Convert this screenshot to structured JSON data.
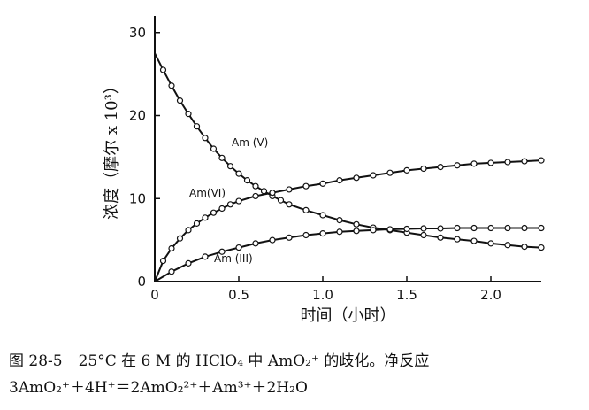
{
  "chart_data": {
    "type": "line",
    "xlabel": "时间（小时）",
    "ylabel": "浓度（摩尔 x 10³）",
    "xlim": [
      0,
      2.3
    ],
    "ylim": [
      0,
      32
    ],
    "x_ticks": [
      {
        "value": 0,
        "label": "0"
      },
      {
        "value": 0.5,
        "label": "0.5"
      },
      {
        "value": 1.0,
        "label": "1.0"
      },
      {
        "value": 1.5,
        "label": "1.5"
      },
      {
        "value": 2.0,
        "label": "2.0"
      }
    ],
    "y_ticks": [
      {
        "value": 0,
        "label": "0"
      },
      {
        "value": 10,
        "label": "10"
      },
      {
        "value": 20,
        "label": "20"
      },
      {
        "value": 30,
        "label": "30"
      }
    ],
    "grid": false,
    "legend": "none",
    "series": [
      {
        "name": "Am (V)",
        "x": [
          0.0,
          0.05,
          0.1,
          0.15,
          0.2,
          0.25,
          0.3,
          0.35,
          0.4,
          0.45,
          0.5,
          0.55,
          0.6,
          0.65,
          0.7,
          0.75,
          0.8,
          0.9,
          1.0,
          1.1,
          1.2,
          1.3,
          1.4,
          1.5,
          1.6,
          1.7,
          1.8,
          1.9,
          2.0,
          2.1,
          2.2,
          2.3
        ],
        "y": [
          27.5,
          25.5,
          23.6,
          21.8,
          20.2,
          18.7,
          17.3,
          16.0,
          14.9,
          13.9,
          13.0,
          12.2,
          11.5,
          10.9,
          10.3,
          9.8,
          9.3,
          8.6,
          8.0,
          7.4,
          6.9,
          6.5,
          6.2,
          5.9,
          5.6,
          5.3,
          5.1,
          4.9,
          4.6,
          4.4,
          4.2,
          4.1
        ]
      },
      {
        "name": "Am(VI)",
        "x": [
          0.0,
          0.05,
          0.1,
          0.15,
          0.2,
          0.25,
          0.3,
          0.35,
          0.4,
          0.45,
          0.5,
          0.6,
          0.7,
          0.8,
          0.9,
          1.0,
          1.1,
          1.2,
          1.3,
          1.4,
          1.5,
          1.6,
          1.7,
          1.8,
          1.9,
          2.0,
          2.1,
          2.2,
          2.3
        ],
        "y": [
          0.0,
          2.5,
          4.0,
          5.2,
          6.2,
          7.0,
          7.7,
          8.3,
          8.8,
          9.3,
          9.7,
          10.3,
          10.7,
          11.1,
          11.5,
          11.8,
          12.2,
          12.5,
          12.8,
          13.1,
          13.4,
          13.6,
          13.8,
          14.0,
          14.2,
          14.3,
          14.4,
          14.5,
          14.6
        ]
      },
      {
        "name": "Am (III)",
        "x": [
          0.0,
          0.1,
          0.2,
          0.3,
          0.4,
          0.5,
          0.6,
          0.7,
          0.8,
          0.9,
          1.0,
          1.1,
          1.2,
          1.3,
          1.4,
          1.5,
          1.6,
          1.7,
          1.8,
          1.9,
          2.0,
          2.1,
          2.2,
          2.3
        ],
        "y": [
          0.0,
          1.2,
          2.2,
          3.0,
          3.6,
          4.1,
          4.6,
          5.0,
          5.3,
          5.6,
          5.8,
          6.0,
          6.1,
          6.2,
          6.3,
          6.35,
          6.4,
          6.4,
          6.45,
          6.45,
          6.45,
          6.45,
          6.45,
          6.45
        ]
      }
    ]
  },
  "caption": {
    "fig_no": "图 28-5",
    "text": "25°C 在 6 M 的 HClO₄ 中 AmO₂⁺ 的歧化。净反应",
    "equation": "3AmO₂⁺＋4H⁺＝2AmO₂²⁺＋Am³⁺＋2H₂O"
  }
}
